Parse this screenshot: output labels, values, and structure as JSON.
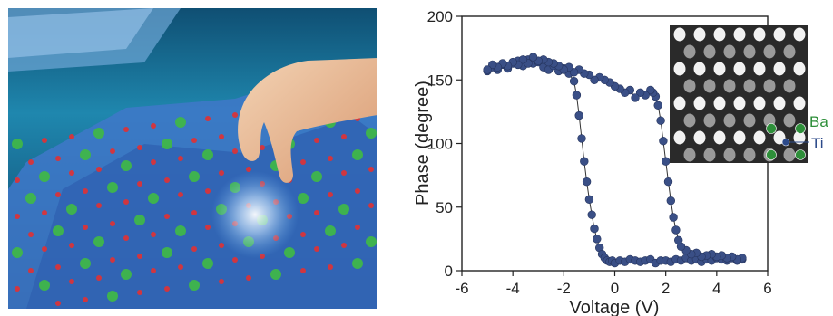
{
  "chart_data": {
    "type": "scatter",
    "title": "",
    "xlabel": "Voltage (V)",
    "ylabel": "Phase (degree)",
    "xlim": [
      -6,
      6
    ],
    "ylim": [
      0,
      200
    ],
    "xticks": [
      -6,
      -4,
      -2,
      0,
      2,
      4,
      6
    ],
    "yticks": [
      0,
      50,
      100,
      150,
      200
    ],
    "marker_color": "#3a4f86",
    "line_color": "#333333",
    "series": [
      {
        "x": [
          -5.0,
          -4.8,
          -4.6,
          -4.4,
          -4.2,
          -4.0,
          -3.8,
          -3.6,
          -3.4,
          -3.2,
          -3.0,
          -2.8,
          -2.6,
          -2.4,
          -2.2,
          -2.0,
          -1.8,
          -1.6,
          -1.5,
          -1.4,
          -1.3,
          -1.2,
          -1.1,
          -1.0,
          -0.9,
          -0.8,
          -0.7,
          -0.6,
          -0.5,
          -0.4,
          -0.3,
          -0.2,
          -0.1,
          0.0,
          0.2,
          0.4,
          0.6,
          0.8,
          1.0,
          1.2,
          1.4,
          1.6,
          1.8,
          2.0,
          2.2,
          2.4,
          2.6,
          2.8,
          3.0,
          3.2,
          3.4,
          3.6,
          3.8,
          4.0,
          4.2,
          4.4,
          4.6,
          4.8,
          5.0
        ],
        "y": [
          157,
          160,
          158,
          162,
          159,
          163,
          165,
          161,
          166,
          163,
          164,
          160,
          158,
          161,
          157,
          159,
          155,
          149,
          138,
          122,
          104,
          86,
          70,
          56,
          44,
          33,
          25,
          18,
          13,
          10,
          8,
          7,
          8,
          6,
          8,
          7,
          9,
          8,
          7,
          8,
          9,
          6,
          8,
          8,
          7,
          9,
          8,
          10,
          8,
          9,
          7,
          9,
          8,
          10,
          9,
          8,
          10,
          8,
          9
        ]
      },
      {
        "x": [
          5.0,
          4.8,
          4.6,
          4.4,
          4.2,
          4.0,
          3.8,
          3.6,
          3.4,
          3.2,
          3.0,
          2.8,
          2.6,
          2.5,
          2.4,
          2.3,
          2.2,
          2.1,
          2.0,
          1.9,
          1.8,
          1.7,
          1.6,
          1.5,
          1.4,
          1.2,
          1.0,
          0.8,
          0.6,
          0.4,
          0.2,
          0.0,
          -0.2,
          -0.4,
          -0.6,
          -0.8,
          -1.0,
          -1.2,
          -1.4,
          -1.6,
          -1.8,
          -2.0,
          -2.2,
          -2.4,
          -2.6,
          -2.8,
          -3.0,
          -3.2,
          -3.4,
          -3.6,
          -3.8,
          -4.0,
          -4.2,
          -4.4,
          -4.6,
          -4.8,
          -5.0
        ],
        "y": [
          10,
          9,
          11,
          10,
          12,
          11,
          13,
          12,
          11,
          14,
          13,
          16,
          19,
          24,
          32,
          42,
          55,
          70,
          86,
          102,
          118,
          130,
          137,
          140,
          142,
          138,
          140,
          136,
          142,
          140,
          143,
          145,
          148,
          150,
          152,
          150,
          154,
          155,
          158,
          156,
          160,
          158,
          161,
          163,
          164,
          166,
          165,
          168,
          163,
          166,
          162,
          164,
          161,
          163,
          160,
          162,
          158
        ]
      }
    ]
  },
  "inset": {
    "labels": [
      "Ba",
      "Ti"
    ],
    "ba_color": "#2e8f3a",
    "ti_color": "#2c4a8a"
  }
}
